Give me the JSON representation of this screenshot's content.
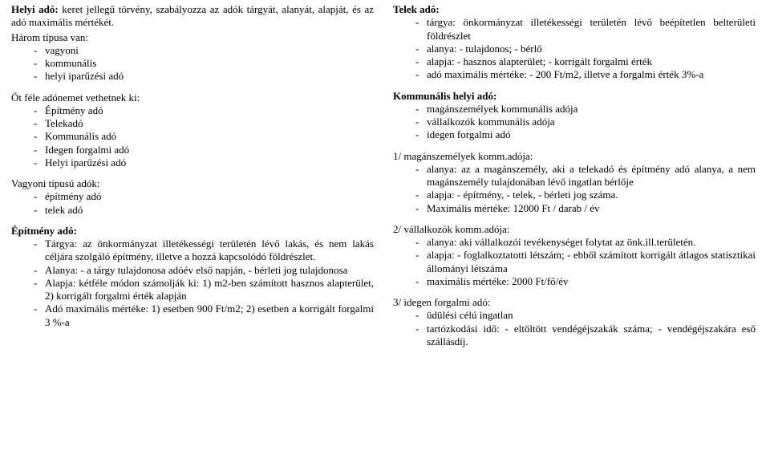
{
  "left": {
    "helyi_ado_lead": "Helyi adó: keret jellegű törvény, szabályozza az adók tárgyát, alanyát, alapját, és az adó maximális mértékét.",
    "harom_tipusa": "Három típusa van:",
    "harom_list": [
      "vagyoni",
      "kommunális",
      "helyi iparűzési adó"
    ],
    "ot_fele": "Öt féle adónemet vethetnek ki:",
    "ot_fele_list": [
      "Építmény adó",
      "Telekadó",
      "Kommunális adó",
      "Idegen forgalmi adó",
      "Helyi iparűzési adó"
    ],
    "vagyoni": "Vagyoni típusú adók:",
    "vagyoni_list": [
      "építmény adó",
      "telek adó"
    ],
    "epitmeny_heading": "Építmény adó:",
    "epitmeny_list": [
      "Tárgya: az önkormányzat illetékességi területén lévő lakás, és nem lakás céljára szolgáló építmény, illetve a hozzá kapcsolódó földrészlet.",
      "Alanya: - a tárgy tulajdonosa adóév első napján, - bérleti jog tulajdonosa",
      "Alapja: kétféle módon számolják ki: 1) m2-ben számított hasznos alapterület, 2) korrigált forgalmi érték alapján",
      "Adó maximális mértéke: 1) esetben 900 Ft/m2; 2) esetben a korrigált forgalmi 3 %-a"
    ]
  },
  "right": {
    "telek_heading": "Telek adó:",
    "telek_list": [
      "tárgya: önkormányzat illetékességi területén lévő beépítetlen belterületi földrészlet",
      "alanya: - tulajdonos; - bérlő",
      "alapja: - hasznos alapterület; - korrigált forgalmi érték",
      "adó maximális mértéke: - 200 Ft/m2, illetve a forgalmi érték 3%-a"
    ],
    "komm_heading": "Kommunális helyi adó:",
    "komm_list": [
      "magánszemélyek kommunális adója",
      "vállalkozók kommunális adója",
      "idegen forgalmi adó"
    ],
    "magan_heading": "1/ magánszemélyek komm.adója:",
    "magan_list": [
      "alanya: az a magánszemély, aki a telekadó és építmény adó alanya, a nem magánszemély tulajdonában lévő ingatlan bérlője",
      "alapja: - építmény, - telek, - bérleti jog száma.",
      "Maximális mértéke: 12000 Ft / darab / év"
    ],
    "vall_heading": "2/ vállalkozók komm.adója:",
    "vall_list": [
      "alanya:   aki   vállalkozói   tevékenységet   folytat   az önk.ill.területén.",
      "alapja: - foglalkoztatotti létszám; - ebből számított korrigált átlagos statisztikai állományi létszáma",
      "maximális mértéke: 2000 Ft/fő/év"
    ],
    "idegen_heading": "3/ idegen forgalmi adó:",
    "idegen_list": [
      "üdülési célú ingatlan",
      "tartózkodási  idő:  -  eltöltött  vendégéjszakák  száma;  - vendégéjszakára eső szállásdíj."
    ]
  }
}
